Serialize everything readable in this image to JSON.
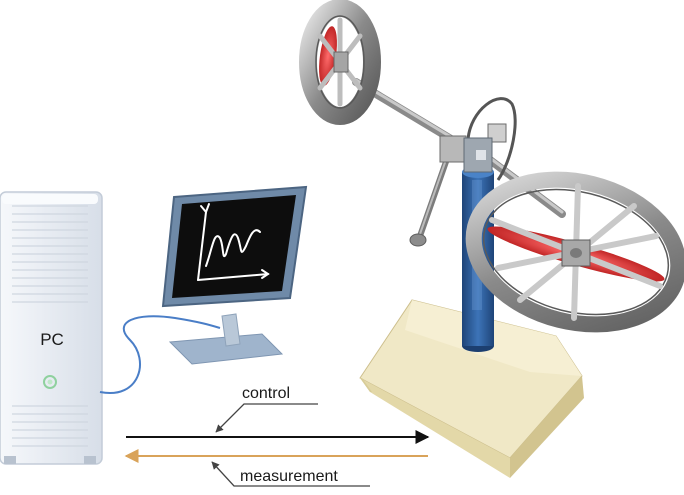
{
  "labels": {
    "pc": "PC",
    "control": "control",
    "measurement": "measurement"
  },
  "colors": {
    "control_arrow": "#111111",
    "measurement_arrow": "#d9a35a",
    "column": "#2f5f9e",
    "rotor_blade": "#d42a2a",
    "base_block": "#efe6c3",
    "monitor_screen": "#0d0d0d",
    "pc_case": "#e9eef5"
  },
  "icons": [
    "pc-tower",
    "monitor",
    "twin-rotor-mimo-system"
  ]
}
